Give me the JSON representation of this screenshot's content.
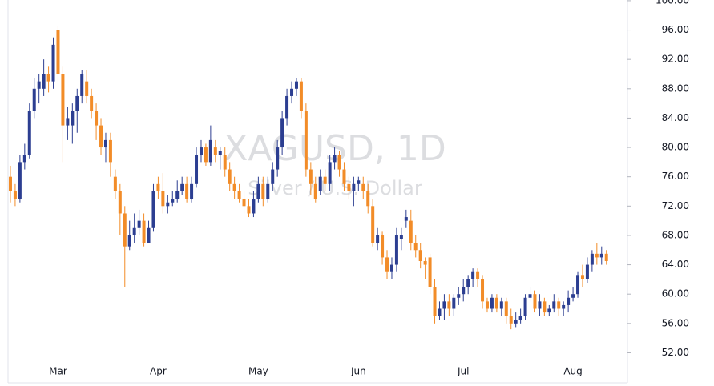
{
  "chart_data": {
    "type": "candlestick",
    "title": "XAGUSD, 1D",
    "subtitle": "Silver / U.S. Dollar",
    "up_color": "#2c3e91",
    "down_color": "#f28c28",
    "ylim": [
      47.9,
      100.1
    ],
    "yticks": [
      {
        "value": 52,
        "label": "52.00"
      },
      {
        "value": 56,
        "label": "56.00"
      },
      {
        "value": 60,
        "label": "60.00"
      },
      {
        "value": 64,
        "label": "64.00"
      },
      {
        "value": 68,
        "label": "68.00"
      },
      {
        "value": 72,
        "label": "72.00"
      },
      {
        "value": 76,
        "label": "76.00"
      },
      {
        "value": 80,
        "label": "80.00"
      },
      {
        "value": 84,
        "label": "84.00"
      },
      {
        "value": 88,
        "label": "88.00"
      },
      {
        "value": 92,
        "label": "92.00"
      },
      {
        "value": 96,
        "label": "96.00"
      },
      {
        "value": 100,
        "label": "100.00"
      }
    ],
    "categories": [
      null,
      null,
      null,
      null,
      null,
      null,
      null,
      null,
      null,
      null,
      "Mar",
      null,
      null,
      null,
      null,
      null,
      null,
      null,
      null,
      null,
      null,
      null,
      null,
      null,
      null,
      null,
      null,
      null,
      null,
      null,
      null,
      "Apr",
      null,
      null,
      null,
      null,
      null,
      null,
      null,
      null,
      null,
      null,
      null,
      null,
      null,
      null,
      null,
      null,
      null,
      null,
      null,
      null,
      "May",
      null,
      null,
      null,
      null,
      null,
      null,
      null,
      null,
      null,
      null,
      null,
      null,
      null,
      null,
      null,
      null,
      null,
      null,
      null,
      null,
      "Jun",
      null,
      null,
      null,
      null,
      null,
      null,
      null,
      null,
      null,
      null,
      null,
      null,
      null,
      null,
      null,
      null,
      null,
      null,
      null,
      null,
      null,
      "Jul",
      null,
      null,
      null,
      null,
      null,
      null,
      null,
      null,
      null,
      null,
      null,
      null,
      null,
      null,
      null,
      null,
      null,
      null,
      null,
      null,
      null,
      null,
      "Aug",
      null,
      null,
      null,
      null,
      null,
      null,
      null
    ],
    "open": [
      76,
      74,
      73,
      78,
      79,
      85,
      88,
      88,
      90,
      89,
      96,
      90,
      83,
      83,
      85,
      87,
      89,
      87,
      85,
      83,
      80,
      81,
      76,
      74,
      71,
      66.5,
      68,
      69,
      70,
      67,
      69,
      75,
      74,
      72,
      72.5,
      73,
      74,
      75,
      73,
      75,
      79,
      80,
      78,
      80,
      79,
      79,
      77,
      75,
      74,
      73,
      72,
      71,
      73,
      75,
      73,
      75,
      77,
      80,
      84,
      87,
      88,
      89,
      85,
      77,
      75,
      74,
      76,
      75,
      78,
      79,
      77,
      75,
      74,
      75,
      75,
      74,
      72,
      67,
      68,
      65,
      63,
      64,
      67.5,
      70,
      70,
      67,
      66,
      64.5,
      65,
      61,
      57,
      58,
      59,
      58,
      59.5,
      60,
      61,
      62,
      63,
      62,
      59,
      58,
      59.5,
      58,
      59,
      57,
      56,
      56.5,
      57,
      59.5,
      60,
      58,
      59,
      57.5,
      58,
      59,
      58,
      58.5,
      59.5,
      60,
      62.5,
      62,
      64,
      65.5,
      65,
      65.5
    ],
    "high": [
      77.5,
      75,
      79,
      80.5,
      86,
      89.5,
      90,
      92,
      91,
      95,
      96.5,
      91,
      85.5,
      86,
      88,
      90.5,
      90.5,
      88,
      86,
      84,
      82,
      82,
      77,
      75,
      72,
      70,
      71,
      71.5,
      71,
      70,
      75,
      76,
      76.5,
      73.5,
      74,
      75.5,
      76,
      76,
      76,
      80,
      81,
      80.5,
      83,
      81,
      80,
      80,
      78,
      76,
      75,
      74,
      73,
      74,
      76,
      76,
      76,
      78,
      81,
      85,
      88,
      89,
      89.5,
      89.5,
      86,
      78,
      76,
      77,
      77,
      79,
      80,
      79.5,
      78,
      76,
      76,
      76,
      76,
      75,
      73,
      69,
      68.5,
      66,
      65,
      69,
      69,
      71.5,
      71.5,
      68,
      67,
      65,
      65.5,
      62,
      59,
      60,
      60,
      60,
      61,
      62,
      62.5,
      63.5,
      63.5,
      62.5,
      59.5,
      60,
      60,
      59.5,
      59.5,
      58,
      57.5,
      58,
      60,
      61,
      60.5,
      60,
      59.5,
      58.5,
      60,
      59.5,
      59,
      60.5,
      61,
      63,
      64,
      65,
      66,
      67,
      66.5,
      66
    ],
    "low": [
      72.5,
      72,
      72.5,
      77,
      78.5,
      84,
      86,
      87,
      87.5,
      88,
      89,
      78,
      81,
      80.5,
      82,
      86,
      86,
      84,
      81,
      79,
      78,
      76,
      73,
      68,
      61,
      66,
      67,
      68,
      66.5,
      67,
      68.5,
      73,
      71,
      71,
      72,
      72.5,
      73.5,
      72.5,
      72.5,
      74.5,
      78,
      77.5,
      77.5,
      78,
      77,
      76,
      74,
      73,
      72.5,
      71,
      70.5,
      70.5,
      72.5,
      72,
      72.5,
      74,
      76,
      79,
      83,
      86,
      87,
      84,
      76,
      73.5,
      72.5,
      73.5,
      74,
      74,
      77,
      76,
      74,
      73,
      72,
      74,
      73,
      71,
      66.5,
      66,
      64,
      62,
      62,
      63,
      66,
      69,
      66,
      65,
      63.5,
      62,
      60,
      56,
      56.5,
      56.5,
      57,
      57,
      58.5,
      59,
      60,
      61,
      61,
      58,
      57.5,
      57.5,
      57.5,
      57,
      56,
      55.2,
      55.5,
      56,
      56.5,
      59,
      57.5,
      57,
      57,
      57,
      57.5,
      57,
      57,
      57.5,
      59,
      59.5,
      61,
      61.5,
      63,
      64,
      64,
      64
    ],
    "close": [
      74,
      73,
      78,
      79,
      85,
      88,
      89,
      90,
      89,
      94,
      90,
      83,
      84,
      85,
      87,
      90,
      87,
      85,
      83,
      80,
      81,
      78,
      74,
      71,
      66.5,
      68,
      69,
      70,
      67,
      69,
      74,
      74,
      72,
      72.5,
      73,
      74,
      75,
      73,
      75,
      79,
      80,
      78,
      81,
      79,
      79.5,
      77,
      75,
      74,
      73,
      72,
      71,
      73,
      75,
      73,
      75,
      77,
      80,
      84,
      87,
      88,
      89,
      85,
      77,
      75,
      73,
      76,
      75,
      78,
      79,
      77,
      75,
      74,
      75,
      75.5,
      74,
      72,
      67,
      68,
      65,
      63,
      64,
      68,
      68,
      70.5,
      67,
      66,
      64.5,
      64,
      61,
      57,
      58,
      59,
      58,
      59.5,
      60,
      61,
      62,
      63,
      62,
      59,
      58,
      59.5,
      58,
      59,
      57,
      56,
      56.5,
      57,
      59.5,
      60,
      58,
      59,
      57.5,
      58,
      59,
      58,
      58.5,
      59.5,
      60,
      62.5,
      62,
      64,
      65.5,
      65,
      65.5,
      64.5
    ]
  }
}
